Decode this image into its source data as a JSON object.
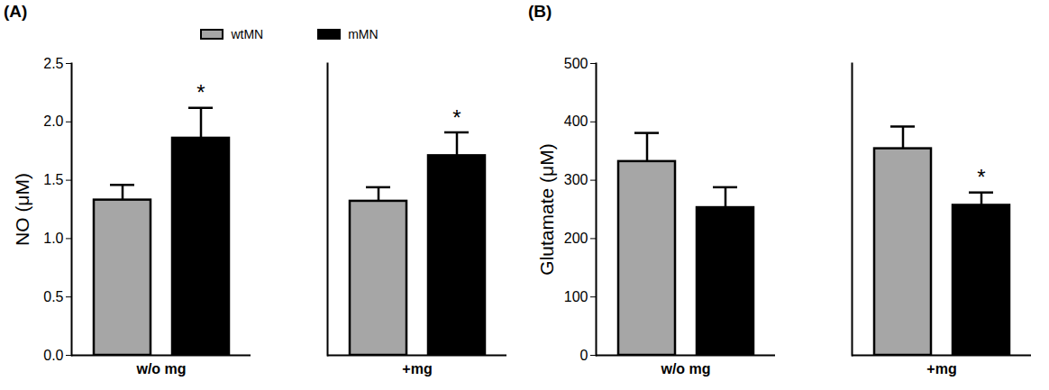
{
  "chart_data": [
    {
      "type": "bar",
      "title": "(A)",
      "ylabel": "NO (μM)",
      "categories": [
        "w/o mg",
        "+mg"
      ],
      "series": [
        {
          "name": "wtMN",
          "color": "#a6a6a6",
          "values": [
            1.33,
            1.32
          ],
          "errors": [
            0.13,
            0.12
          ],
          "significance": [
            null,
            null
          ]
        },
        {
          "name": "mMN",
          "color": "#000000",
          "values": [
            1.86,
            1.71
          ],
          "errors": [
            0.26,
            0.2
          ],
          "significance": [
            "*",
            "*"
          ]
        }
      ],
      "ylim": [
        0,
        2.5
      ],
      "yticks": [
        {
          "value": 0,
          "label": "0.0"
        },
        0.5,
        {
          "value": 1,
          "label": "1.0"
        },
        1.5,
        {
          "value": 2,
          "label": "2.0"
        },
        2.5
      ],
      "legend": "top",
      "grid": false
    },
    {
      "type": "bar",
      "title": "(B)",
      "ylabel": "Glutamate (μM)",
      "categories": [
        "w/o mg",
        "+mg"
      ],
      "series": [
        {
          "name": "wtMN",
          "color": "#a6a6a6",
          "values": [
            332,
            354
          ],
          "errors": [
            49,
            38
          ],
          "significance": [
            null,
            null
          ]
        },
        {
          "name": "mMN",
          "color": "#000000",
          "values": [
            253,
            257
          ],
          "errors": [
            35,
            22
          ],
          "significance": [
            null,
            "*"
          ]
        }
      ],
      "ylim": [
        0,
        500
      ],
      "yticks": [
        0,
        100,
        200,
        300,
        400,
        500
      ],
      "grid": false
    }
  ]
}
